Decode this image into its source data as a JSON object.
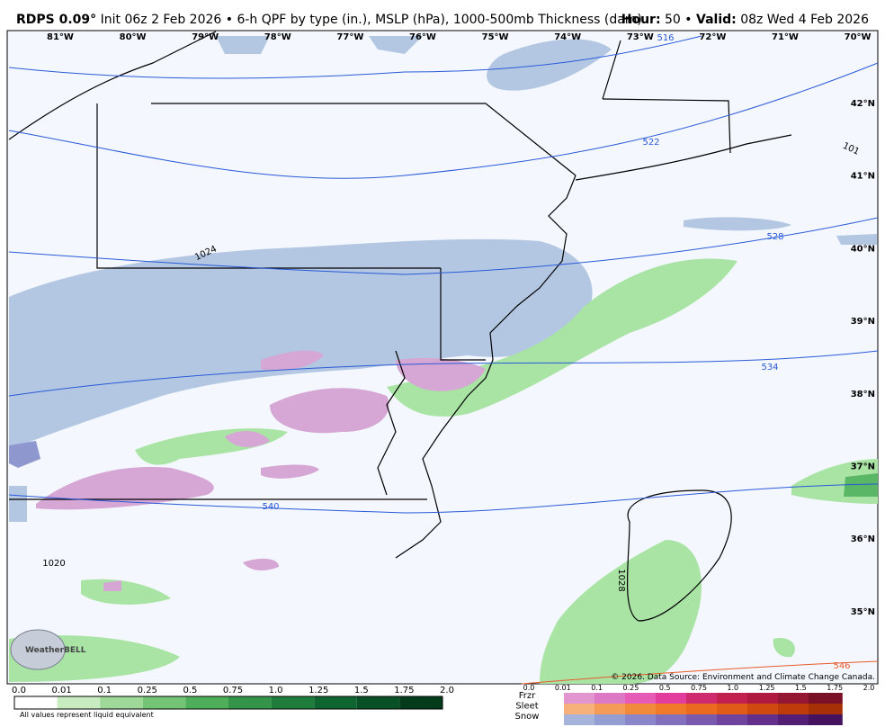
{
  "header": {
    "model": "RDPS 0.09°",
    "description": "Init 06z 2 Feb 2026 • 6-h QPF by type (in.), MSLP (hPa), 1000-500mb Thickness (dam)",
    "hour_label": "Hour:",
    "hour": "50 •",
    "valid_label": "Valid:",
    "valid": "08z Wed 4 Feb 2026"
  },
  "map": {
    "longitudes": [
      "81°W",
      "80°W",
      "79°W",
      "78°W",
      "77°W",
      "76°W",
      "75°W",
      "74°W",
      "73°W",
      "72°W",
      "71°W",
      "70°W"
    ],
    "latitudes": [
      "42°N",
      "41°N",
      "40°N",
      "39°N",
      "38°N",
      "37°N",
      "36°N",
      "35°N"
    ],
    "thickness_labels": [
      "516",
      "522",
      "528",
      "534",
      "540",
      "546"
    ],
    "pressure_labels": [
      "1024",
      "1020",
      "1028",
      "101"
    ],
    "credit": "© 2026. Data Source: Environment and Climate Change Canada.",
    "logo": "WeatherBELL"
  },
  "legend": {
    "rain": {
      "ticks": [
        "0.0",
        "0.01",
        "0.1",
        "0.25",
        "0.5",
        "0.75",
        "1.0",
        "1.25",
        "1.5",
        "1.75",
        "2.0"
      ],
      "note": "All values represent liquid equivalent"
    },
    "types": {
      "labels": [
        "Frzr",
        "Sleet",
        "Snow"
      ],
      "ticks": [
        "0.0",
        "0.01",
        "0.1",
        "0.25",
        "0.5",
        "0.75",
        "1.0",
        "1.25",
        "1.5",
        "1.75",
        "2.0"
      ]
    }
  }
}
